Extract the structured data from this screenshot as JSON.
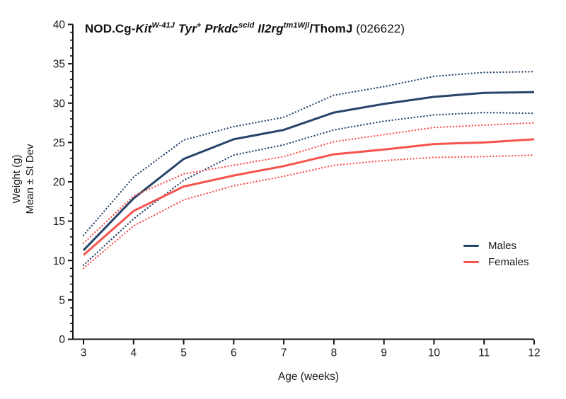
{
  "title": {
    "segments": [
      {
        "text": "NOD.Cg-",
        "bold": true
      },
      {
        "text": "Kit",
        "bold": true,
        "italic": true
      },
      {
        "text": "W-41J",
        "bold": true,
        "italic": true,
        "sup": true
      },
      {
        "text": " Tyr",
        "bold": true,
        "italic": true
      },
      {
        "text": "+",
        "bold": true,
        "sup": true
      },
      {
        "text": " Prkdc",
        "bold": true,
        "italic": true
      },
      {
        "text": "scid",
        "bold": true,
        "italic": true,
        "sup": true
      },
      {
        "text": " Il2rg",
        "bold": true,
        "italic": true
      },
      {
        "text": "tm1Wjl",
        "bold": true,
        "italic": true,
        "sup": true
      },
      {
        "text": "/ThomJ",
        "bold": true
      },
      {
        "text": " (026622)",
        "bold": false
      }
    ]
  },
  "chart_data": {
    "type": "line",
    "xlabel": "Age (weeks)",
    "ylabel_line1": "Weight (g)",
    "ylabel_line2": "Mean ± St Dev",
    "x": [
      3,
      4,
      5,
      6,
      7,
      8,
      9,
      10,
      11,
      12
    ],
    "xlim": [
      3,
      12
    ],
    "ylim": [
      0,
      40
    ],
    "y_major_ticks": [
      0,
      5,
      10,
      15,
      20,
      25,
      30,
      35,
      40
    ],
    "y_minor_step": 1,
    "grid": "off",
    "colors": {
      "males": "#28456a",
      "females": "#f6534e",
      "axis": "#111111",
      "text": "#1a1a1a"
    },
    "series": [
      {
        "name": "Males mean",
        "group": "males",
        "style": "solid",
        "values": [
          11.3,
          17.9,
          22.9,
          25.4,
          26.6,
          28.8,
          29.9,
          30.8,
          31.3,
          31.4
        ]
      },
      {
        "name": "Males mean plus SD",
        "group": "males",
        "style": "dotted",
        "values": [
          13.2,
          20.6,
          25.3,
          27.0,
          28.2,
          31.0,
          32.1,
          33.4,
          33.9,
          34.0
        ]
      },
      {
        "name": "Males mean minus SD",
        "group": "males",
        "style": "dotted",
        "values": [
          9.4,
          15.3,
          20.2,
          23.4,
          24.7,
          26.6,
          27.7,
          28.5,
          28.8,
          28.7
        ]
      },
      {
        "name": "Females mean",
        "group": "females",
        "style": "solid",
        "values": [
          10.7,
          16.3,
          19.4,
          20.8,
          22.0,
          23.5,
          24.1,
          24.8,
          25.0,
          25.4
        ]
      },
      {
        "name": "Females mean plus SD",
        "group": "females",
        "style": "dotted",
        "values": [
          12.2,
          18.2,
          21.0,
          22.1,
          23.2,
          25.1,
          26.0,
          26.9,
          27.2,
          27.5
        ]
      },
      {
        "name": "Females mean minus SD",
        "group": "females",
        "style": "dotted",
        "values": [
          9.0,
          14.4,
          17.7,
          19.5,
          20.7,
          22.1,
          22.7,
          23.1,
          23.2,
          23.4
        ]
      }
    ],
    "legend": {
      "position": "right-middle",
      "items": [
        {
          "label": "Males",
          "group": "males"
        },
        {
          "label": "Females",
          "group": "females"
        }
      ]
    }
  }
}
